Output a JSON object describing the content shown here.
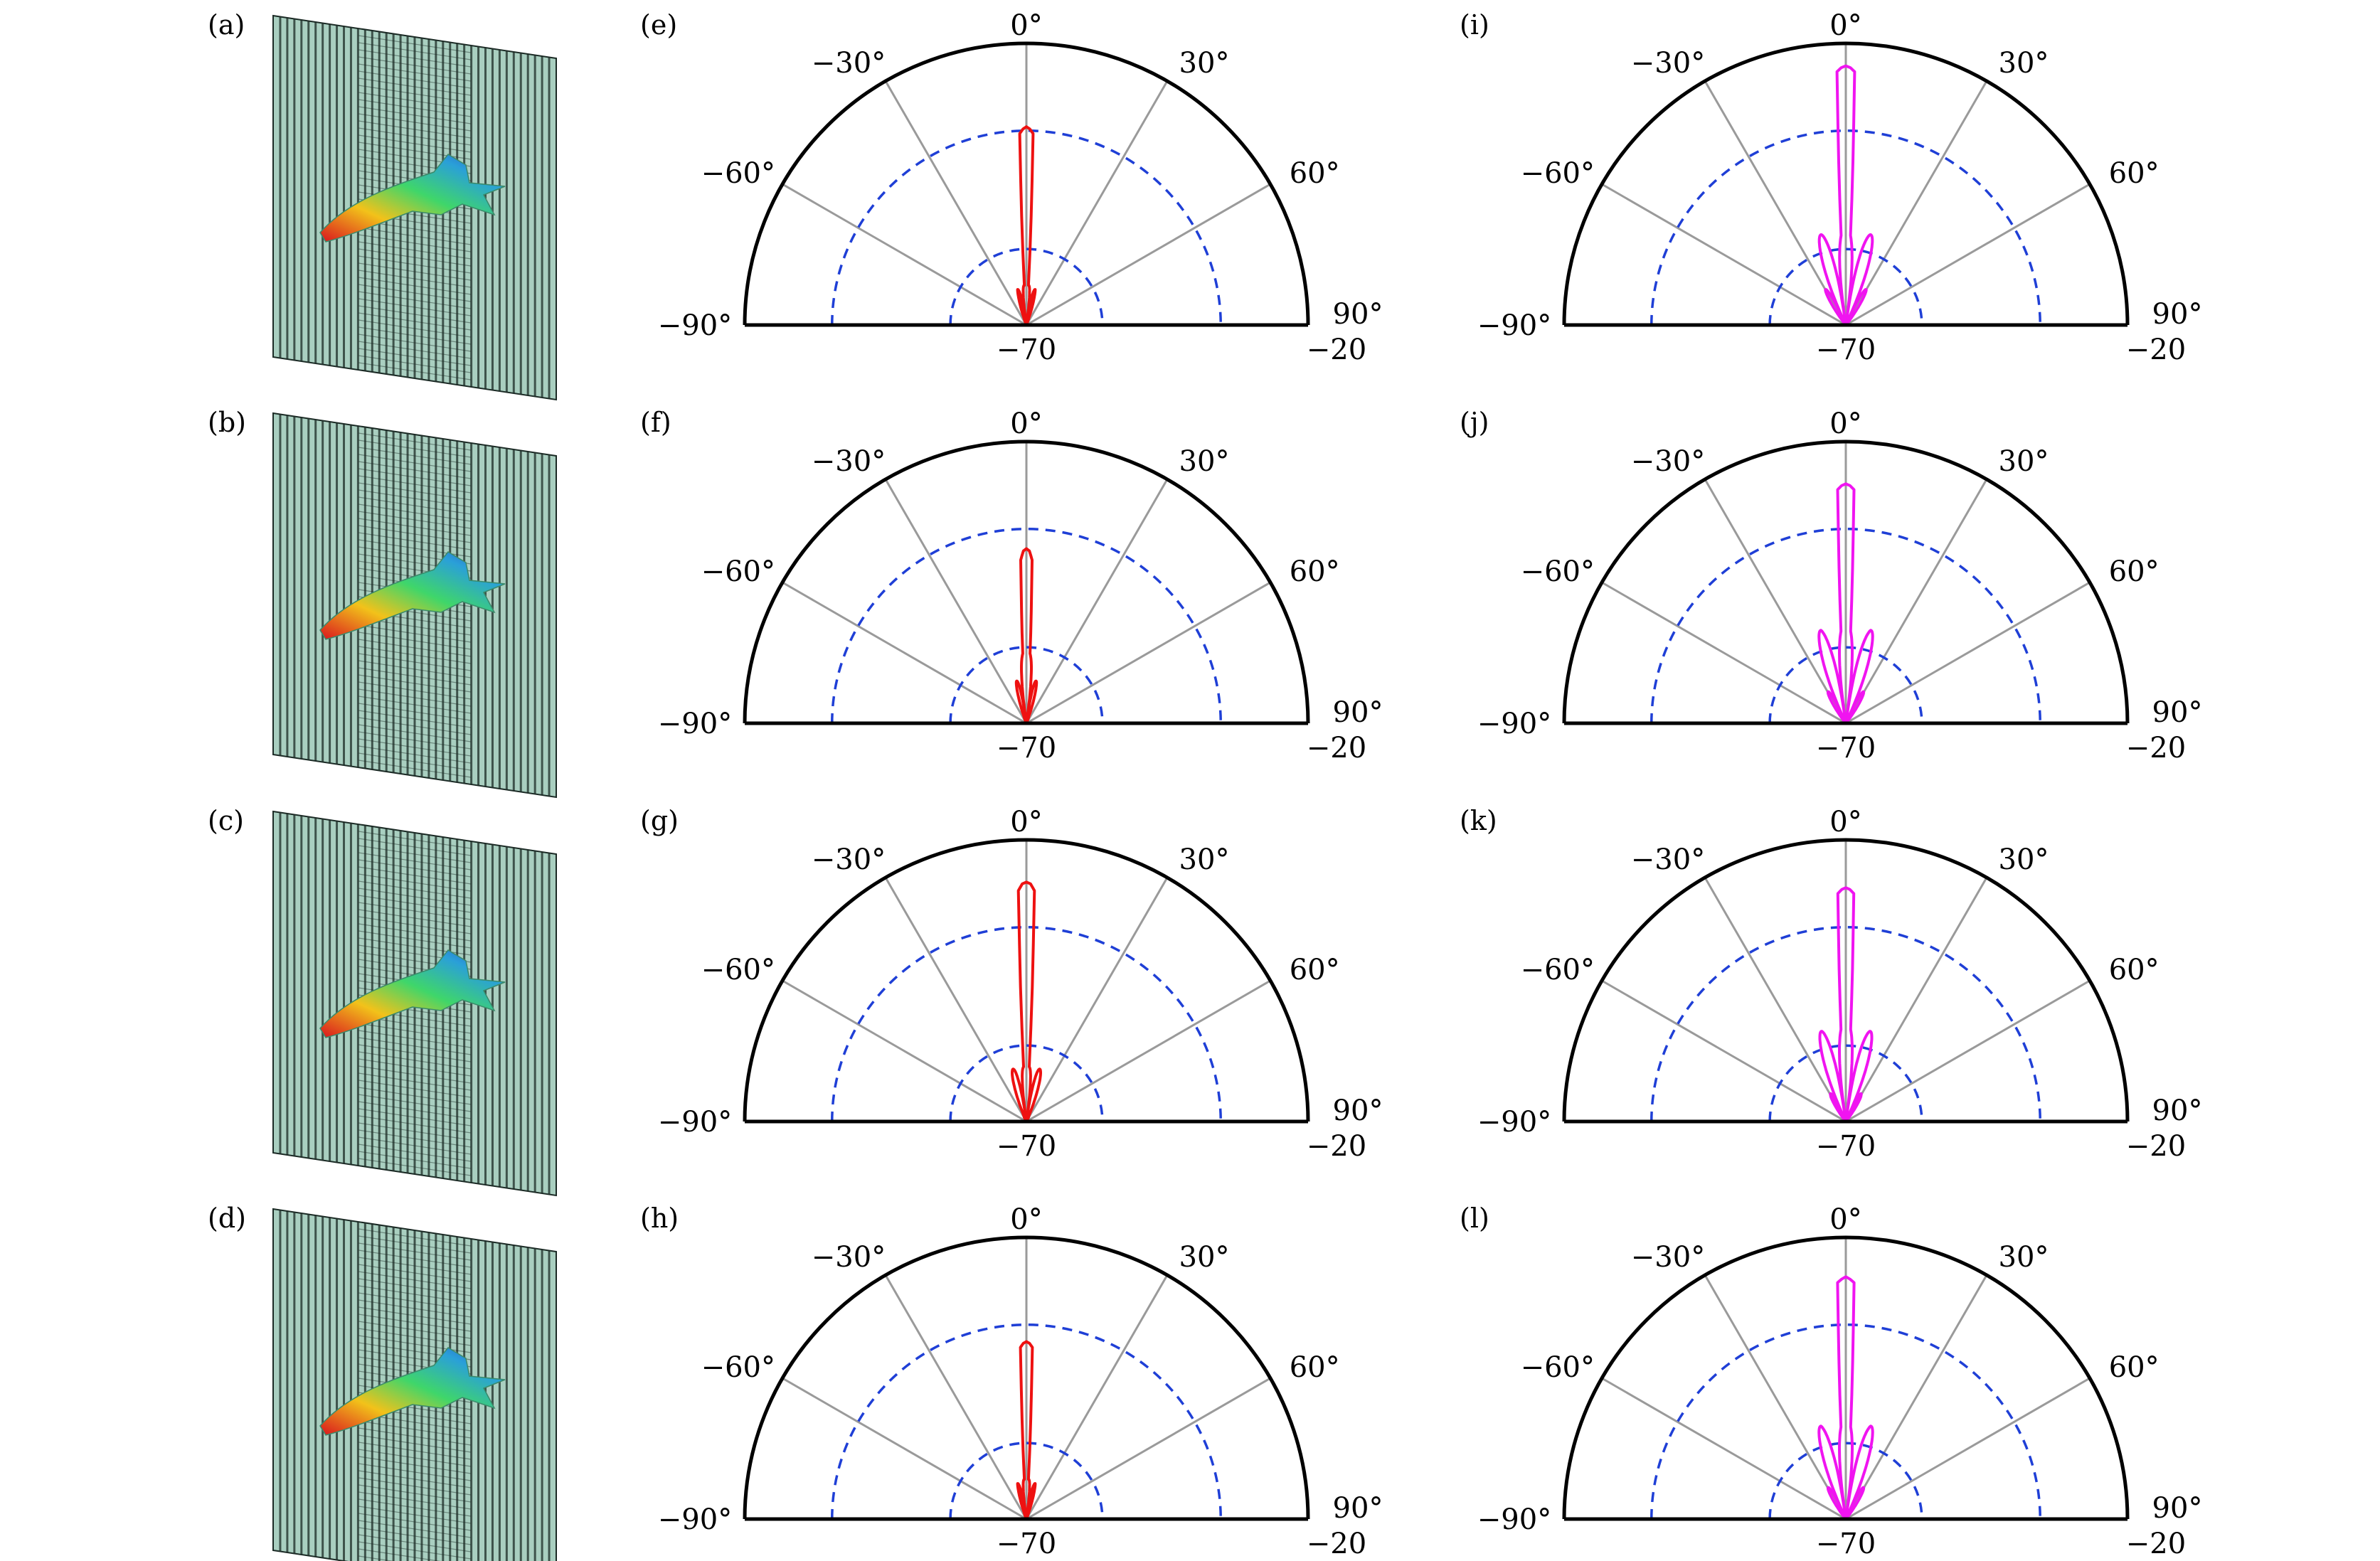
{
  "colors": {
    "background": "#ffffff",
    "frame": "#000000",
    "spoke": "#9a9a9a",
    "reference_circle": "#1f3fd6",
    "panel_surface": "#a9cfc0",
    "panel_grid": "#1b2a25",
    "series_red": "#ee1111",
    "series_magenta": "#f014f0"
  },
  "surface_panels": [
    {
      "label": "(a)"
    },
    {
      "label": "(b)"
    },
    {
      "label": "(c)"
    },
    {
      "label": "(d)"
    }
  ],
  "chart_common": {
    "angle_labels": [
      "−90°",
      "−60°",
      "−30°",
      "0°",
      "30°",
      "60°",
      "90°"
    ],
    "radial_labels": [
      "−70",
      "−20"
    ],
    "r_range": [
      -70,
      -20
    ],
    "theta_range": [
      -90,
      90
    ],
    "spoke_angles": [
      -90,
      -60,
      -30,
      0,
      30,
      60,
      90
    ],
    "reference_circles": [
      -56.5,
      -35.5
    ]
  },
  "chart_data": [
    {
      "type": "polar-line",
      "label": "(e)",
      "color": "series_red",
      "theta": [
        -90,
        -60,
        -30,
        -20,
        -14,
        -10,
        -7,
        -5,
        -3,
        -2,
        -1,
        0,
        1,
        2,
        3,
        5,
        7,
        10,
        14,
        20,
        30,
        60,
        90
      ],
      "r_envelope": [
        -70,
        -70,
        -70,
        -69,
        -63,
        -61,
        -60,
        -60.5,
        -62,
        -36,
        -35.2,
        -34.8,
        -35.2,
        -36,
        -62,
        -60.5,
        -60,
        -61,
        -63,
        -69,
        -70,
        -70,
        -70
      ]
    },
    {
      "type": "polar-line",
      "label": "(f)",
      "color": "series_red",
      "theta": [
        -90,
        -60,
        -30,
        -20,
        -14,
        -10,
        -7,
        -5,
        -3,
        -2,
        -1,
        0,
        1,
        2,
        3,
        5,
        7,
        10,
        14,
        20,
        30,
        60,
        90
      ],
      "r_envelope": [
        -70,
        -70,
        -70,
        -68.5,
        -62,
        -58,
        -55.5,
        -55,
        -56,
        -41,
        -39.4,
        -39,
        -39.4,
        -41,
        -56,
        -55,
        -55.5,
        -58,
        -62,
        -68.5,
        -70,
        -70,
        -70
      ]
    },
    {
      "type": "polar-line",
      "label": "(g)",
      "color": "series_red",
      "theta": [
        -90,
        -60,
        -30,
        -25,
        -18,
        -12,
        -8,
        -5,
        -3,
        -2,
        -1,
        0,
        1,
        2,
        3,
        5,
        8,
        12,
        18,
        25,
        30,
        60,
        90
      ],
      "r_envelope": [
        -70,
        -70,
        -70,
        -67.5,
        -62,
        -58.5,
        -57,
        -57.5,
        -59,
        -29,
        -27.8,
        -27.5,
        -27.8,
        -29,
        -59,
        -57.5,
        -57,
        -58.5,
        -62,
        -67.5,
        -70,
        -70,
        -70
      ]
    },
    {
      "type": "polar-line",
      "label": "(h)",
      "color": "series_red",
      "theta": [
        -90,
        -60,
        -30,
        -20,
        -14,
        -10,
        -7,
        -5,
        -3,
        -2,
        -1,
        0,
        1,
        2,
        3,
        5,
        7,
        10,
        14,
        20,
        30,
        60,
        90
      ],
      "r_envelope": [
        -70,
        -70,
        -70,
        -69,
        -63,
        -61,
        -60,
        -60.5,
        -62,
        -39.5,
        -38.8,
        -38.5,
        -38.8,
        -39.5,
        -62,
        -60.5,
        -60,
        -61,
        -63,
        -69,
        -70,
        -70,
        -70
      ]
    },
    {
      "type": "polar-line",
      "label": "(i)",
      "color": "series_magenta",
      "theta": [
        -90,
        -60,
        -40,
        -30,
        -22,
        -15,
        -10,
        -6,
        -3,
        -2,
        -1,
        0,
        1,
        2,
        3,
        6,
        10,
        15,
        22,
        30,
        40,
        60,
        90
      ],
      "r_envelope": [
        -70,
        -70,
        -70,
        -62,
        -56,
        -53,
        -51.5,
        -51,
        -52,
        -25,
        -24.3,
        -24,
        -24.3,
        -25,
        -52,
        -51,
        -51.5,
        -53,
        -56,
        -62,
        -70,
        -70,
        -70
      ]
    },
    {
      "type": "polar-line",
      "label": "(j)",
      "color": "series_magenta",
      "theta": [
        -90,
        -60,
        -40,
        -30,
        -22,
        -15,
        -10,
        -6,
        -3,
        -2,
        -1,
        0,
        1,
        2,
        3,
        6,
        10,
        15,
        22,
        30,
        40,
        60,
        90
      ],
      "r_envelope": [
        -70,
        -70,
        -70,
        -63,
        -56.5,
        -52.5,
        -51,
        -50.5,
        -51.5,
        -28.5,
        -27.8,
        -27.5,
        -27.8,
        -28.5,
        -51.5,
        -50.5,
        -51,
        -52.5,
        -56.5,
        -63,
        -70,
        -70,
        -70
      ]
    },
    {
      "type": "polar-line",
      "label": "(k)",
      "color": "series_magenta",
      "theta": [
        -90,
        -60,
        -40,
        -30,
        -22,
        -15,
        -10,
        -6,
        -3,
        -2,
        -1,
        0,
        1,
        2,
        3,
        6,
        10,
        15,
        22,
        30,
        40,
        60,
        90
      ],
      "r_envelope": [
        -70,
        -70,
        -70,
        -64,
        -57,
        -53,
        -51,
        -50.5,
        -51.5,
        -29.5,
        -28.8,
        -28.5,
        -28.8,
        -29.5,
        -51.5,
        -50.5,
        -51,
        -53,
        -57,
        -64,
        -70,
        -70,
        -70
      ]
    },
    {
      "type": "polar-line",
      "label": "(l)",
      "color": "series_magenta",
      "theta": [
        -90,
        -60,
        -40,
        -30,
        -22,
        -15,
        -10,
        -6,
        -3,
        -2,
        -1,
        0,
        1,
        2,
        3,
        6,
        10,
        15,
        22,
        30,
        40,
        60,
        90
      ],
      "r_envelope": [
        -70,
        -70,
        -70,
        -63,
        -56.5,
        -52.5,
        -51,
        -50.5,
        -51.5,
        -28,
        -27.4,
        -27,
        -27.4,
        -28,
        -51.5,
        -50.5,
        -51,
        -52.5,
        -56.5,
        -63,
        -70,
        -70,
        -70
      ]
    }
  ]
}
